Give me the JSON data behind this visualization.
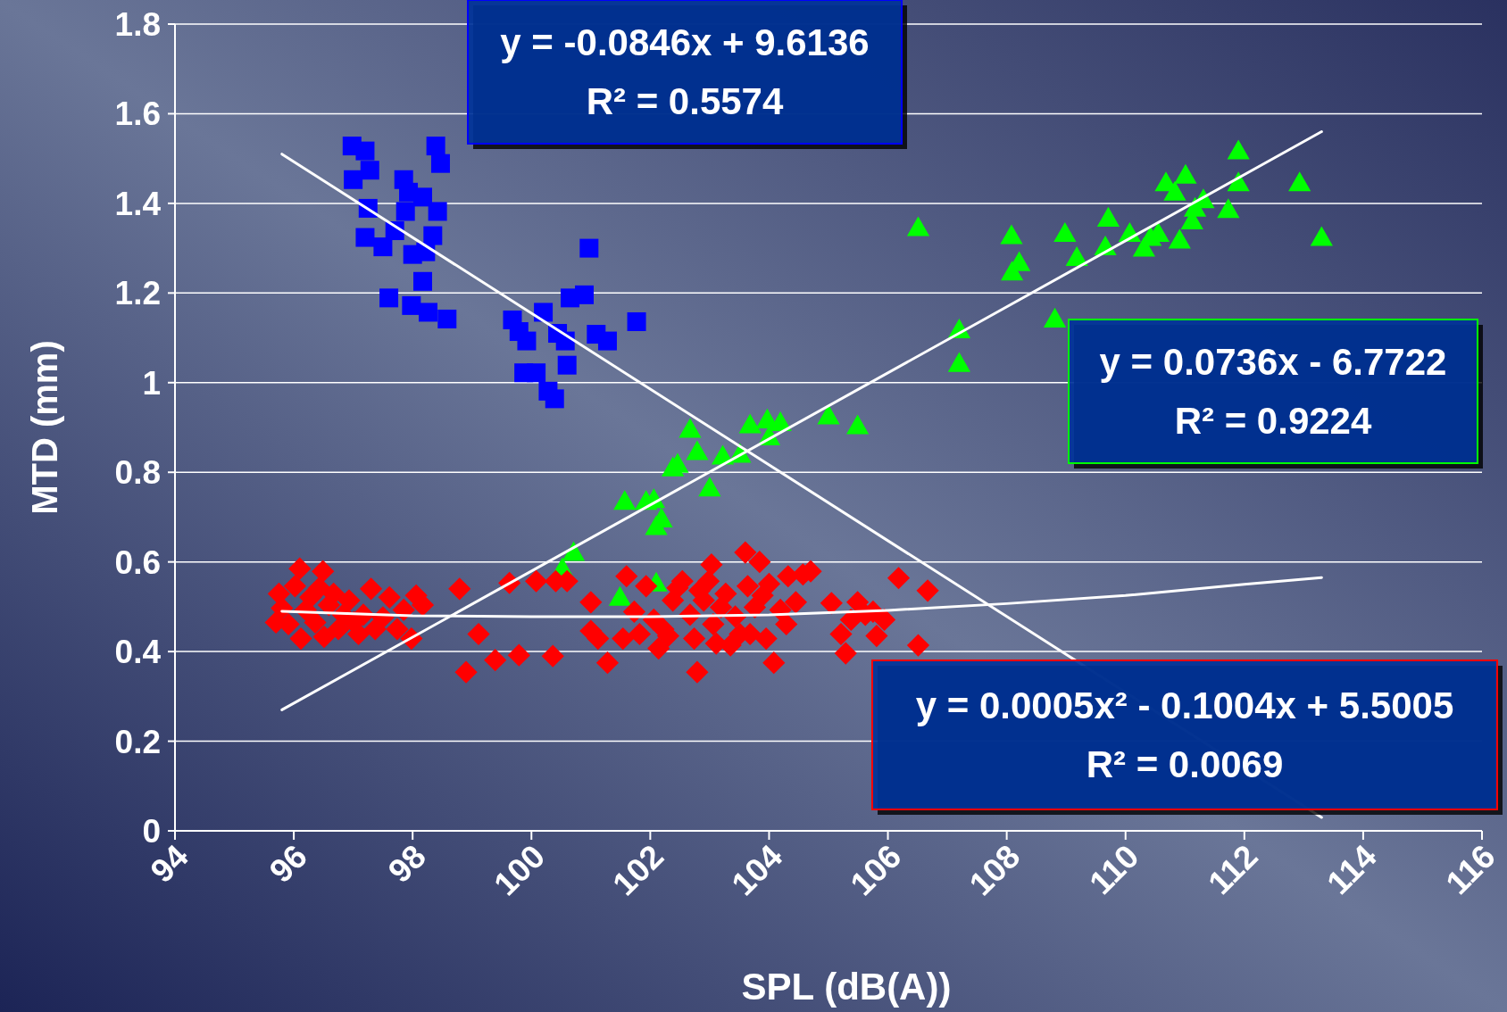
{
  "chart_data": {
    "type": "scatter",
    "xlabel": "SPL (dB(A))",
    "ylabel": "MTD (mm)",
    "xlim": [
      94,
      116
    ],
    "ylim": [
      0,
      1.8
    ],
    "xticks": [
      94,
      96,
      98,
      100,
      102,
      104,
      106,
      108,
      110,
      112,
      114,
      116
    ],
    "yticks": [
      0,
      0.2,
      0.4,
      0.6,
      0.8,
      1,
      1.2,
      1.4,
      1.6,
      1.8
    ],
    "grid": "y",
    "annotations": [
      "y = -0.0846x + 9.6136\nR² = 0.5574",
      "y = 0.0736x - 6.7722\nR² = 0.9224",
      "y = 0.0005x² - 0.1004x + 5.5005\nR² = 0.0069"
    ],
    "series": [
      {
        "marker": "square",
        "color": "#0000ff",
        "x": [
          96.98,
          97.2,
          97.0,
          97.28,
          97.25,
          97.2,
          97.5,
          97.6,
          97.7,
          97.85,
          97.88,
          97.93,
          98.0,
          97.98,
          98.17,
          98.17,
          98.22,
          98.26,
          98.34,
          98.39,
          98.42,
          98.47,
          98.58,
          99.68,
          99.79,
          99.92,
          99.87,
          100.08,
          100.2,
          100.28,
          100.39,
          100.44,
          100.57,
          100.6,
          100.65,
          100.89,
          100.97,
          101.09,
          101.28,
          101.77
        ],
        "values": [
          1.528,
          1.517,
          1.453,
          1.474,
          1.389,
          1.324,
          1.303,
          1.189,
          1.339,
          1.453,
          1.382,
          1.425,
          1.286,
          1.172,
          1.414,
          1.226,
          1.292,
          1.157,
          1.328,
          1.528,
          1.382,
          1.489,
          1.142,
          1.14,
          1.114,
          1.093,
          1.022,
          1.022,
          1.157,
          0.981,
          0.964,
          1.11,
          1.093,
          1.039,
          1.189,
          1.196,
          1.3,
          1.108,
          1.093,
          1.136
        ]
      },
      {
        "marker": "triangle",
        "color": "#00ff00",
        "x": [
          100.52,
          100.71,
          101.49,
          101.57,
          101.93,
          102.06,
          102.1,
          102.19,
          102.1,
          102.38,
          102.46,
          102.67,
          102.79,
          103.0,
          103.22,
          103.51,
          103.68,
          103.97,
          104.0,
          104.19,
          105.0,
          105.49,
          106.51,
          107.2,
          107.2,
          108.08,
          108.09,
          108.21,
          108.81,
          108.98,
          109.18,
          109.66,
          109.71,
          110.07,
          110.31,
          110.42,
          110.55,
          110.68,
          110.83,
          110.91,
          111.01,
          111.12,
          111.17,
          111.31,
          111.73,
          111.9,
          111.9,
          112.93,
          113.3
        ],
        "values": [
          0.585,
          0.621,
          0.521,
          0.735,
          0.735,
          0.739,
          0.679,
          0.696,
          0.553,
          0.81,
          0.818,
          0.896,
          0.846,
          0.765,
          0.836,
          0.84,
          0.906,
          0.917,
          0.879,
          0.911,
          0.926,
          0.904,
          1.346,
          1.118,
          1.043,
          1.328,
          1.247,
          1.268,
          1.142,
          1.333,
          1.279,
          1.303,
          1.367,
          1.333,
          1.3,
          1.324,
          1.333,
          1.446,
          1.425,
          1.318,
          1.463,
          1.361,
          1.389,
          1.408,
          1.386,
          1.517,
          1.446,
          1.446,
          1.324
        ]
      },
      {
        "marker": "diamond",
        "color": "#ff0000",
        "x": [
          95.7,
          95.75,
          95.8,
          95.91,
          96.02,
          96.1,
          96.12,
          96.2,
          96.28,
          96.36,
          96.43,
          96.49,
          96.51,
          96.59,
          96.67,
          96.75,
          96.83,
          96.93,
          97.01,
          97.09,
          97.17,
          97.3,
          97.37,
          97.5,
          97.61,
          97.74,
          97.85,
          97.98,
          98.06,
          98.17,
          98.79,
          98.9,
          99.11,
          99.39,
          99.63,
          99.79,
          100.08,
          100.36,
          100.41,
          100.6,
          101.0,
          101.0,
          101.12,
          101.28,
          101.54,
          101.6,
          101.73,
          101.82,
          101.93,
          102.06,
          102.14,
          102.22,
          102.3,
          102.38,
          102.46,
          102.54,
          102.67,
          102.74,
          102.79,
          102.83,
          102.9,
          102.98,
          103.03,
          103.06,
          103.11,
          103.19,
          103.27,
          103.35,
          103.43,
          103.51,
          103.6,
          103.64,
          103.68,
          103.76,
          103.84,
          103.89,
          103.95,
          104.0,
          104.08,
          104.19,
          104.29,
          104.32,
          104.45,
          104.57,
          104.7,
          105.05,
          105.21,
          105.29,
          105.38,
          105.49,
          105.62,
          105.75,
          105.81,
          105.94,
          106.18,
          106.51,
          106.67
        ],
        "values": [
          0.465,
          0.529,
          0.497,
          0.461,
          0.546,
          0.585,
          0.429,
          0.493,
          0.521,
          0.465,
          0.542,
          0.579,
          0.433,
          0.504,
          0.529,
          0.45,
          0.482,
          0.514,
          0.465,
          0.439,
          0.482,
          0.54,
          0.45,
          0.476,
          0.521,
          0.45,
          0.493,
          0.429,
          0.525,
          0.504,
          0.54,
          0.354,
          0.439,
          0.381,
          0.553,
          0.392,
          0.557,
          0.39,
          0.557,
          0.557,
          0.51,
          0.446,
          0.429,
          0.375,
          0.429,
          0.568,
          0.489,
          0.439,
          0.546,
          0.471,
          0.407,
          0.45,
          0.435,
          0.514,
          0.542,
          0.557,
          0.482,
          0.429,
          0.354,
          0.536,
          0.514,
          0.557,
          0.594,
          0.461,
          0.418,
          0.499,
          0.529,
          0.414,
          0.478,
          0.439,
          0.621,
          0.546,
          0.439,
          0.499,
          0.6,
          0.525,
          0.429,
          0.551,
          0.375,
          0.493,
          0.461,
          0.568,
          0.51,
          0.572,
          0.579,
          0.508,
          0.439,
          0.396,
          0.471,
          0.51,
          0.482,
          0.489,
          0.435,
          0.471,
          0.564,
          0.414,
          0.536
        ]
      },
      {
        "type": "line",
        "color": "#ffffff",
        "x": [
          95.8,
          113.3
        ],
        "values": [
          1.51,
          0.03
        ]
      },
      {
        "type": "line",
        "color": "#ffffff",
        "x": [
          95.8,
          113.3
        ],
        "values": [
          0.27,
          1.56
        ]
      },
      {
        "type": "line",
        "color": "#ffffff",
        "x": [
          95.8,
          98,
          100,
          102,
          104,
          106,
          108,
          110,
          112,
          113.3
        ],
        "values": [
          0.49,
          0.48,
          0.478,
          0.478,
          0.482,
          0.492,
          0.507,
          0.525,
          0.55,
          0.565
        ]
      }
    ]
  }
}
